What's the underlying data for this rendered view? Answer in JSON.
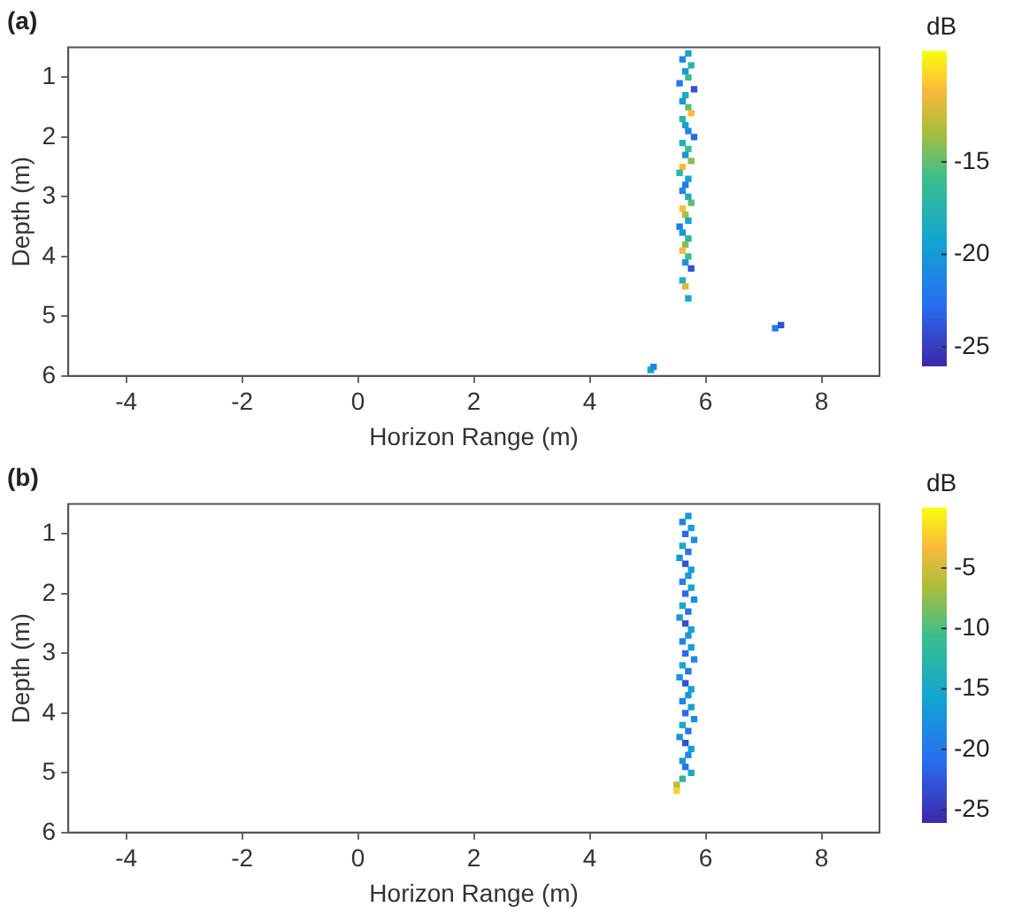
{
  "chart_data": [
    {
      "type": "scatter",
      "title": "(a)",
      "xlabel": "Horizon Range (m)",
      "ylabel": "Depth (m)",
      "clabel": "dB",
      "marker": "square",
      "x": [
        5.7,
        5.6,
        5.75,
        5.65,
        5.7,
        5.55,
        5.8,
        5.65,
        5.6,
        5.7,
        5.75,
        5.6,
        5.65,
        5.7,
        5.8,
        5.6,
        5.7,
        5.65,
        5.75,
        5.6,
        5.55,
        5.7,
        5.65,
        5.6,
        5.7,
        5.75,
        5.6,
        5.65,
        5.7,
        5.55,
        5.6,
        5.7,
        5.65,
        5.6,
        5.7,
        5.65,
        5.75,
        5.6,
        5.65,
        5.7,
        7.2,
        7.3,
        5.05,
        5.1
      ],
      "values": [
        0.6,
        0.7,
        0.8,
        0.9,
        1.0,
        1.1,
        1.2,
        1.3,
        1.4,
        1.5,
        1.6,
        1.7,
        1.8,
        1.9,
        2.0,
        2.1,
        2.2,
        2.3,
        2.4,
        2.5,
        2.6,
        2.7,
        2.8,
        2.9,
        3.0,
        3.1,
        3.2,
        3.3,
        3.4,
        3.5,
        3.6,
        3.7,
        3.8,
        3.9,
        4.0,
        4.1,
        4.2,
        4.4,
        4.5,
        4.7,
        5.2,
        5.15,
        5.9,
        5.85
      ],
      "cvalues": [
        -19,
        -21,
        -17,
        -20,
        -16,
        -22,
        -24,
        -18,
        -20,
        -15,
        -11,
        -17,
        -19,
        -21,
        -23,
        -18,
        -16,
        -20,
        -14,
        -11,
        -17,
        -19,
        -22,
        -21,
        -18,
        -15,
        -11,
        -13,
        -19,
        -22,
        -20,
        -17,
        -14,
        -11,
        -16,
        -20,
        -24,
        -18,
        -12,
        -19,
        -22,
        -24,
        -19,
        -21
      ],
      "xlim": [
        -5,
        9
      ],
      "xticks": [
        -4,
        -2,
        0,
        2,
        4,
        6,
        8
      ],
      "ylim": [
        6,
        0.5
      ],
      "yticks": [
        1,
        2,
        3,
        4,
        5,
        6
      ],
      "clim": [
        -26,
        -9
      ],
      "cticks": [
        -15,
        -20,
        -25
      ]
    },
    {
      "type": "scatter",
      "title": "(b)",
      "xlabel": "Horizon Range (m)",
      "ylabel": "Depth (m)",
      "clabel": "dB",
      "marker": "square",
      "x": [
        5.7,
        5.6,
        5.75,
        5.65,
        5.8,
        5.6,
        5.7,
        5.55,
        5.65,
        5.75,
        5.7,
        5.6,
        5.75,
        5.65,
        5.8,
        5.6,
        5.7,
        5.55,
        5.65,
        5.75,
        5.7,
        5.6,
        5.75,
        5.65,
        5.8,
        5.6,
        5.7,
        5.55,
        5.65,
        5.75,
        5.7,
        5.6,
        5.75,
        5.65,
        5.8,
        5.6,
        5.7,
        5.55,
        5.65,
        5.75,
        5.7,
        5.6,
        5.65,
        5.75,
        5.6,
        5.5,
        5.5
      ],
      "values": [
        0.7,
        0.8,
        0.9,
        1.0,
        1.1,
        1.2,
        1.3,
        1.4,
        1.5,
        1.6,
        1.7,
        1.8,
        1.9,
        2.0,
        2.1,
        2.2,
        2.3,
        2.4,
        2.5,
        2.6,
        2.7,
        2.8,
        2.9,
        3.0,
        3.1,
        3.2,
        3.3,
        3.4,
        3.5,
        3.6,
        3.7,
        3.8,
        3.9,
        4.0,
        4.1,
        4.2,
        4.3,
        4.4,
        4.5,
        4.6,
        4.7,
        4.8,
        4.9,
        5.0,
        5.1,
        5.2,
        5.3
      ],
      "cvalues": [
        -17,
        -19,
        -16,
        -21,
        -18,
        -15,
        -20,
        -17,
        -23,
        -16,
        -17,
        -19,
        -16,
        -21,
        -18,
        -15,
        -20,
        -17,
        -23,
        -16,
        -17,
        -19,
        -16,
        -21,
        -18,
        -15,
        -20,
        -17,
        -23,
        -16,
        -17,
        -19,
        -16,
        -21,
        -18,
        -15,
        -20,
        -17,
        -23,
        -16,
        -18,
        -17,
        -20,
        -15,
        -12,
        -6,
        -2
      ],
      "xlim": [
        -5,
        9
      ],
      "xticks": [
        -4,
        -2,
        0,
        2,
        4,
        6,
        8
      ],
      "ylim": [
        6,
        0.5
      ],
      "yticks": [
        1,
        2,
        3,
        4,
        5,
        6
      ],
      "clim": [
        -26,
        0
      ],
      "cticks": [
        -5,
        -10,
        -15,
        -20,
        -25
      ]
    }
  ]
}
